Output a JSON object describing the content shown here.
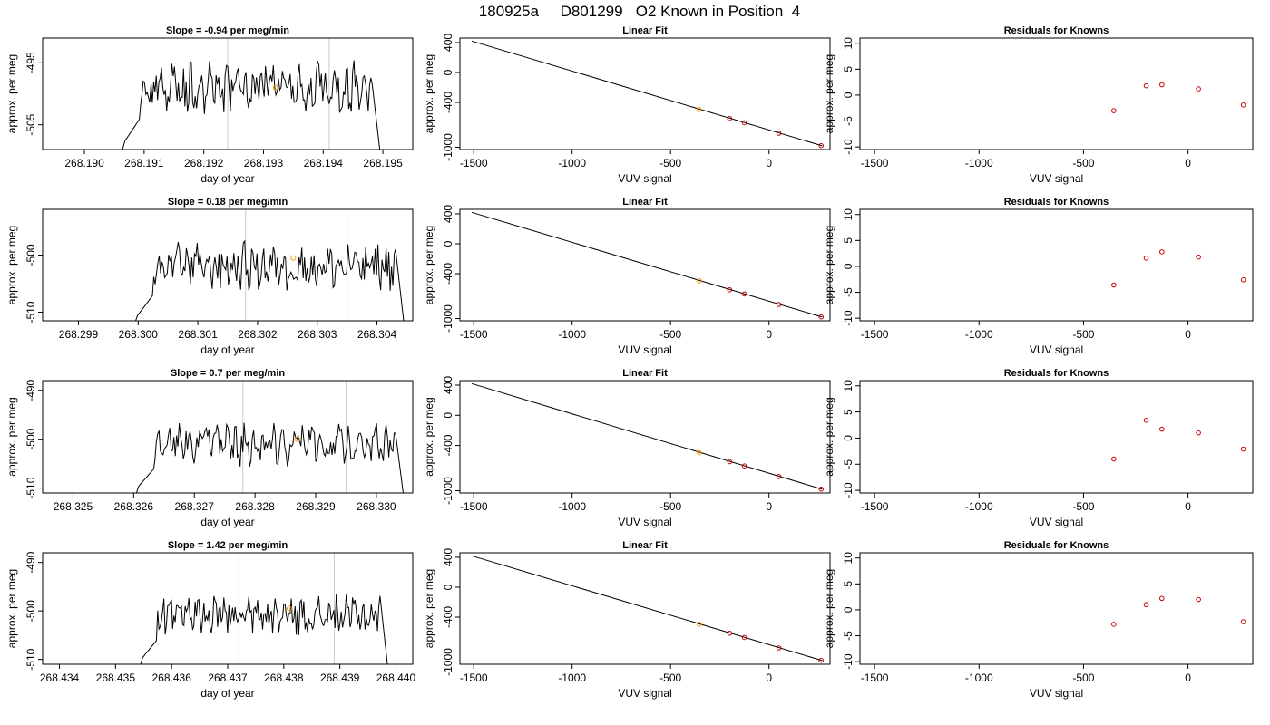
{
  "figure": {
    "title": "180925a     D801299   O2 Known in Position  4"
  },
  "colors": {
    "trace": "#000000",
    "marker_known": "#ff9900",
    "residual": "#cc0000",
    "vline": "#cccccc"
  },
  "chart_data": [
    {
      "row": 1,
      "panel": "time",
      "type": "line",
      "title": "Slope =  -0.94  per meg/min",
      "xlabel": "day of year",
      "ylabel": "approx. per meg",
      "xlim": [
        268.1893,
        268.1955
      ],
      "ylim": [
        -509,
        -491
      ],
      "xticks": [
        268.19,
        268.191,
        268.192,
        268.193,
        268.194,
        268.195
      ],
      "xtick_labels": [
        "268.190",
        "268.191",
        "268.192",
        "268.193",
        "268.194",
        "268.195"
      ],
      "yticks": [
        -495,
        -505
      ],
      "ytick_labels": [
        "-495",
        "-505"
      ],
      "vlines": [
        268.1924,
        268.1941
      ],
      "trace_start": 268.1905,
      "trace_end": 268.195,
      "baseline": -499,
      "marker": {
        "x": 268.1932,
        "y": -499
      }
    },
    {
      "row": 1,
      "panel": "fit",
      "type": "line",
      "title": "Linear Fit",
      "xlabel": "VUV signal",
      "ylabel": "approx. per meg",
      "xlim": [
        -1570,
        310
      ],
      "ylim": [
        -1030,
        460
      ],
      "xticks": [
        -1500,
        -1000,
        -500,
        0
      ],
      "xtick_labels": [
        "-1500",
        "-1000",
        "-500",
        "0"
      ],
      "yticks": [
        400,
        0,
        -400,
        -1000
      ],
      "ytick_labels": [
        "400",
        "0",
        "-400",
        "-1000"
      ],
      "line": {
        "x": [
          -1510,
          270
        ],
        "y": [
          420,
          -980
        ]
      },
      "points": [
        {
          "x": -355,
          "y": -495,
          "known": true
        },
        {
          "x": -200,
          "y": -615,
          "known": false
        },
        {
          "x": -125,
          "y": -672,
          "known": false
        },
        {
          "x": 50,
          "y": -812,
          "known": false
        },
        {
          "x": 265,
          "y": -978,
          "known": false
        }
      ]
    },
    {
      "row": 1,
      "panel": "residuals",
      "type": "scatter",
      "title": "Residuals for Knowns",
      "xlabel": "VUV signal",
      "ylabel": "approx. per meg",
      "xlim": [
        -1570,
        310
      ],
      "ylim": [
        -10.5,
        11
      ],
      "xticks": [
        -1500,
        -1000,
        -500,
        0
      ],
      "xtick_labels": [
        "-1500",
        "-1000",
        "-500",
        "0"
      ],
      "yticks": [
        10,
        5,
        0,
        -5,
        -10
      ],
      "ytick_labels": [
        "10",
        "5",
        "0",
        "-5",
        "-10"
      ],
      "x": [
        -355,
        -200,
        -125,
        50,
        265
      ],
      "y": [
        -3.0,
        1.8,
        2.0,
        1.2,
        -1.9
      ]
    },
    {
      "row": 2,
      "panel": "time",
      "type": "line",
      "title": "Slope =  0.18  per meg/min",
      "xlabel": "day of year",
      "ylabel": "approx. per meg",
      "xlim": [
        268.2984,
        268.3046
      ],
      "ylim": [
        -511.5,
        -492
      ],
      "xticks": [
        268.299,
        268.3,
        268.301,
        268.302,
        268.303,
        268.304
      ],
      "xtick_labels": [
        "268.299",
        "268.300",
        "268.301",
        "268.302",
        "268.303",
        "268.304"
      ],
      "yticks": [
        -500,
        -510
      ],
      "ytick_labels": [
        "-500",
        "-510"
      ],
      "vlines": [
        268.3018,
        268.3035
      ],
      "trace_start": 268.2998,
      "trace_end": 268.3045,
      "baseline": -502,
      "marker": {
        "x": 268.3026,
        "y": -500.5
      }
    },
    {
      "row": 2,
      "panel": "fit",
      "type": "line",
      "title": "Linear Fit",
      "xlabel": "VUV signal",
      "ylabel": "approx. per meg",
      "xlim": [
        -1570,
        310
      ],
      "ylim": [
        -1030,
        460
      ],
      "xticks": [
        -1500,
        -1000,
        -500,
        0
      ],
      "xtick_labels": [
        "-1500",
        "-1000",
        "-500",
        "0"
      ],
      "yticks": [
        400,
        0,
        -400,
        -1000
      ],
      "ytick_labels": [
        "400",
        "0",
        "-400",
        "-1000"
      ],
      "line": {
        "x": [
          -1510,
          270
        ],
        "y": [
          420,
          -980
        ]
      },
      "points": [
        {
          "x": -355,
          "y": -495,
          "known": true
        },
        {
          "x": -200,
          "y": -615,
          "known": false
        },
        {
          "x": -125,
          "y": -672,
          "known": false
        },
        {
          "x": 50,
          "y": -812,
          "known": false
        },
        {
          "x": 265,
          "y": -978,
          "known": false
        }
      ]
    },
    {
      "row": 2,
      "panel": "residuals",
      "type": "scatter",
      "title": "Residuals for Knowns",
      "xlabel": "VUV signal",
      "ylabel": "approx. per meg",
      "xlim": [
        -1570,
        310
      ],
      "ylim": [
        -10.5,
        11
      ],
      "xticks": [
        -1500,
        -1000,
        -500,
        0
      ],
      "xtick_labels": [
        "-1500",
        "-1000",
        "-500",
        "0"
      ],
      "yticks": [
        10,
        5,
        0,
        -5,
        -10
      ],
      "ytick_labels": [
        "10",
        "5",
        "0",
        "-5",
        "-10"
      ],
      "x": [
        -355,
        -200,
        -125,
        50,
        265
      ],
      "y": [
        -3.6,
        1.6,
        2.8,
        1.8,
        -2.6
      ]
    },
    {
      "row": 3,
      "panel": "time",
      "type": "line",
      "title": "Slope =  0.7  per meg/min",
      "xlabel": "day of year",
      "ylabel": "approx. per meg",
      "xlim": [
        268.3245,
        268.3306
      ],
      "ylim": [
        -511,
        -488
      ],
      "xticks": [
        268.325,
        268.326,
        268.327,
        268.328,
        268.329,
        268.33
      ],
      "xtick_labels": [
        "268.325",
        "268.326",
        "268.327",
        "268.328",
        "268.329",
        "268.330"
      ],
      "yticks": [
        -490,
        -500,
        -510
      ],
      "ytick_labels": [
        "-490",
        "-500",
        "-510"
      ],
      "vlines": [
        268.3278,
        268.3295
      ],
      "trace_start": 268.3259,
      "trace_end": 268.3305,
      "baseline": -501,
      "marker": {
        "x": 268.3287,
        "y": -500
      }
    },
    {
      "row": 3,
      "panel": "fit",
      "type": "line",
      "title": "Linear Fit",
      "xlabel": "VUV signal",
      "ylabel": "approx. per meg",
      "xlim": [
        -1570,
        310
      ],
      "ylim": [
        -1030,
        460
      ],
      "xticks": [
        -1500,
        -1000,
        -500,
        0
      ],
      "xtick_labels": [
        "-1500",
        "-1000",
        "-500",
        "0"
      ],
      "yticks": [
        400,
        0,
        -400,
        -1000
      ],
      "ytick_labels": [
        "400",
        "0",
        "-400",
        "-1000"
      ],
      "line": {
        "x": [
          -1510,
          270
        ],
        "y": [
          420,
          -980
        ]
      },
      "points": [
        {
          "x": -355,
          "y": -495,
          "known": true
        },
        {
          "x": -200,
          "y": -615,
          "known": false
        },
        {
          "x": -125,
          "y": -672,
          "known": false
        },
        {
          "x": 50,
          "y": -812,
          "known": false
        },
        {
          "x": 265,
          "y": -978,
          "known": false
        }
      ]
    },
    {
      "row": 3,
      "panel": "residuals",
      "type": "scatter",
      "title": "Residuals for Knowns",
      "xlabel": "VUV signal",
      "ylabel": "approx. per meg",
      "xlim": [
        -1570,
        310
      ],
      "ylim": [
        -10.5,
        11
      ],
      "xticks": [
        -1500,
        -1000,
        -500,
        0
      ],
      "xtick_labels": [
        "-1500",
        "-1000",
        "-500",
        "0"
      ],
      "yticks": [
        10,
        5,
        0,
        -5,
        -10
      ],
      "ytick_labels": [
        "10",
        "5",
        "0",
        "-5",
        "-10"
      ],
      "x": [
        -355,
        -200,
        -125,
        50,
        265
      ],
      "y": [
        -4.0,
        3.4,
        1.7,
        1.0,
        -2.1
      ]
    },
    {
      "row": 4,
      "panel": "time",
      "type": "line",
      "title": "Slope =  1.42  per meg/min",
      "xlabel": "day of year",
      "ylabel": "approx. per meg",
      "xlim": [
        268.4337,
        268.4403
      ],
      "ylim": [
        -511,
        -488
      ],
      "xticks": [
        268.434,
        268.435,
        268.436,
        268.437,
        268.438,
        268.439,
        268.44
      ],
      "xtick_labels": [
        "268.434",
        "268.435",
        "268.436",
        "268.437",
        "268.438",
        "268.439",
        "268.440"
      ],
      "yticks": [
        -490,
        -500,
        -510
      ],
      "ytick_labels": [
        "-490",
        "-500",
        "-510"
      ],
      "vlines": [
        268.4372,
        268.4389
      ],
      "trace_start": 268.4353,
      "trace_end": 268.4399,
      "baseline": -501,
      "marker": {
        "x": 268.4381,
        "y": -499.5
      }
    },
    {
      "row": 4,
      "panel": "fit",
      "type": "line",
      "title": "Linear Fit",
      "xlabel": "VUV signal",
      "ylabel": "approx. per meg",
      "xlim": [
        -1570,
        310
      ],
      "ylim": [
        -1030,
        460
      ],
      "xticks": [
        -1500,
        -1000,
        -500,
        0
      ],
      "xtick_labels": [
        "-1500",
        "-1000",
        "-500",
        "0"
      ],
      "yticks": [
        400,
        0,
        -400,
        -1000
      ],
      "ytick_labels": [
        "400",
        "0",
        "-400",
        "-1000"
      ],
      "line": {
        "x": [
          -1510,
          270
        ],
        "y": [
          420,
          -980
        ]
      },
      "points": [
        {
          "x": -355,
          "y": -495,
          "known": true
        },
        {
          "x": -200,
          "y": -615,
          "known": false
        },
        {
          "x": -125,
          "y": -672,
          "known": false
        },
        {
          "x": 50,
          "y": -812,
          "known": false
        },
        {
          "x": 265,
          "y": -978,
          "known": false
        }
      ]
    },
    {
      "row": 4,
      "panel": "residuals",
      "type": "scatter",
      "title": "Residuals for Knowns",
      "xlabel": "VUV signal",
      "ylabel": "approx. per meg",
      "xlim": [
        -1570,
        310
      ],
      "ylim": [
        -10.5,
        11
      ],
      "xticks": [
        -1500,
        -1000,
        -500,
        0
      ],
      "xtick_labels": [
        "-1500",
        "-1000",
        "-500",
        "0"
      ],
      "yticks": [
        10,
        5,
        0,
        -5,
        -10
      ],
      "ytick_labels": [
        "10",
        "5",
        "0",
        "-5",
        "-10"
      ],
      "x": [
        -355,
        -200,
        -125,
        50,
        265
      ],
      "y": [
        -2.8,
        1.0,
        2.2,
        2.0,
        -2.3
      ]
    }
  ]
}
